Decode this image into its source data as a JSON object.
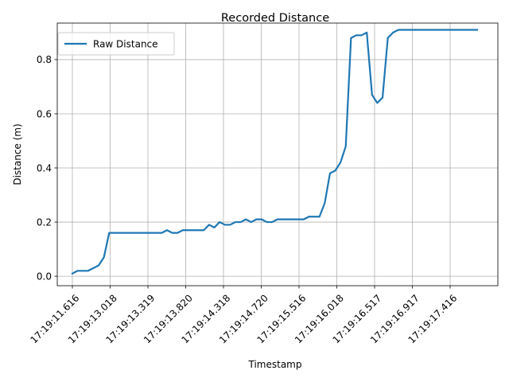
{
  "chart_data": {
    "type": "line",
    "title": "Recorded Distance",
    "xlabel": "Timestamp",
    "ylabel": "Distance (m)",
    "ylim": [
      -0.035,
      0.935
    ],
    "yticks": [
      "0.0",
      "0.2",
      "0.4",
      "0.6",
      "0.8"
    ],
    "xtick_labels": [
      "17:19:11.616",
      "17:19:13.018",
      "17:19:13.319",
      "17:19:13.820",
      "17:19:14.318",
      "17:19:14.720",
      "17:19:15.516",
      "17:19:16.018",
      "17:19:16.517",
      "17:19:16.917",
      "17:19:17.416"
    ],
    "grid": true,
    "legend_position": "upper-left",
    "colors": {
      "series": "#1f77b4",
      "grid": "#b0b0b0"
    },
    "series": [
      {
        "name": "Raw Distance",
        "values": [
          0.01,
          0.02,
          0.02,
          0.02,
          0.03,
          0.04,
          0.07,
          0.16,
          0.16,
          0.16,
          0.16,
          0.16,
          0.16,
          0.16,
          0.16,
          0.16,
          0.16,
          0.16,
          0.17,
          0.16,
          0.16,
          0.17,
          0.17,
          0.17,
          0.17,
          0.17,
          0.19,
          0.18,
          0.2,
          0.19,
          0.19,
          0.2,
          0.2,
          0.21,
          0.2,
          0.21,
          0.21,
          0.2,
          0.2,
          0.21,
          0.21,
          0.21,
          0.21,
          0.21,
          0.21,
          0.22,
          0.22,
          0.22,
          0.27,
          0.38,
          0.39,
          0.42,
          0.48,
          0.88,
          0.89,
          0.89,
          0.9,
          0.67,
          0.64,
          0.66,
          0.88,
          0.9,
          0.91,
          0.91,
          0.91,
          0.91,
          0.91,
          0.91,
          0.91,
          0.91,
          0.91,
          0.91,
          0.91,
          0.91,
          0.91,
          0.91,
          0.91,
          0.91
        ]
      }
    ]
  }
}
